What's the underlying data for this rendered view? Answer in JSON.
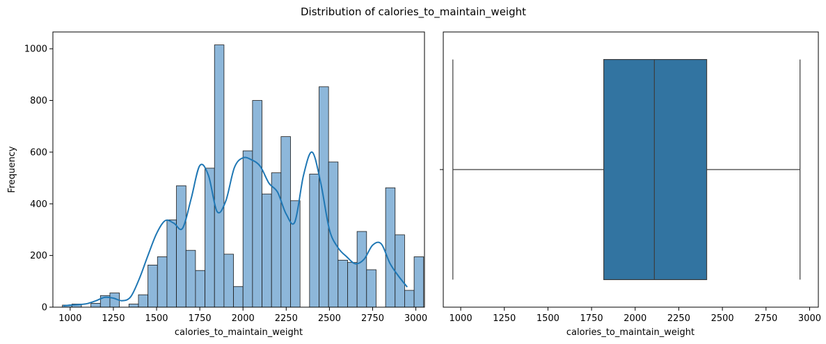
{
  "figure": {
    "title": "Distribution of calories_to_maintain_weight"
  },
  "colors": {
    "hist_fill": "#8db7da",
    "hist_edge": "#1a1a1a",
    "kde_line": "#1f77b4",
    "box_fill": "#3274a1",
    "box_line": "#3d3d3d"
  },
  "chart_data": [
    {
      "type": "bar",
      "subtype": "histogram_with_kde",
      "xlabel": "calories_to_maintain_weight",
      "ylabel": "Frequency",
      "xlim": [
        900,
        3050
      ],
      "ylim": [
        0,
        1065
      ],
      "xticks": [
        1000,
        1250,
        1500,
        1750,
        2000,
        2250,
        2500,
        2750,
        3000
      ],
      "yticks": [
        0,
        200,
        400,
        600,
        800,
        1000
      ],
      "bin_start": 955,
      "bin_width": 55,
      "values": [
        8,
        12,
        0,
        15,
        45,
        55,
        0,
        12,
        48,
        163,
        195,
        338,
        470,
        220,
        142,
        538,
        1015,
        205,
        80,
        605,
        800,
        438,
        520,
        660,
        412,
        0,
        515,
        853,
        562,
        182,
        173,
        293,
        145,
        0,
        462,
        280,
        65,
        195
      ],
      "kde": {
        "x": [
          960,
          1000,
          1050,
          1100,
          1150,
          1200,
          1250,
          1300,
          1350,
          1400,
          1450,
          1500,
          1550,
          1600,
          1650,
          1700,
          1750,
          1800,
          1850,
          1900,
          1950,
          2000,
          2050,
          2100,
          2150,
          2200,
          2250,
          2300,
          2350,
          2400,
          2450,
          2500,
          2550,
          2600,
          2650,
          2700,
          2750,
          2800,
          2850,
          2900,
          2950
        ],
        "y": [
          5,
          8,
          10,
          14,
          25,
          38,
          35,
          25,
          40,
          110,
          200,
          285,
          335,
          325,
          305,
          420,
          548,
          510,
          370,
          410,
          540,
          578,
          570,
          545,
          480,
          445,
          360,
          330,
          510,
          600,
          480,
          300,
          230,
          195,
          168,
          185,
          240,
          245,
          170,
          120,
          78
        ]
      }
    },
    {
      "type": "box",
      "xlabel": "calories_to_maintain_weight",
      "xlim": [
        900,
        3050
      ],
      "xticks": [
        1000,
        1250,
        1500,
        1750,
        2000,
        2250,
        2500,
        2750,
        3000
      ],
      "whisker_low": 955,
      "q1": 1820,
      "median": 2110,
      "q3": 2410,
      "whisker_high": 2945
    }
  ]
}
